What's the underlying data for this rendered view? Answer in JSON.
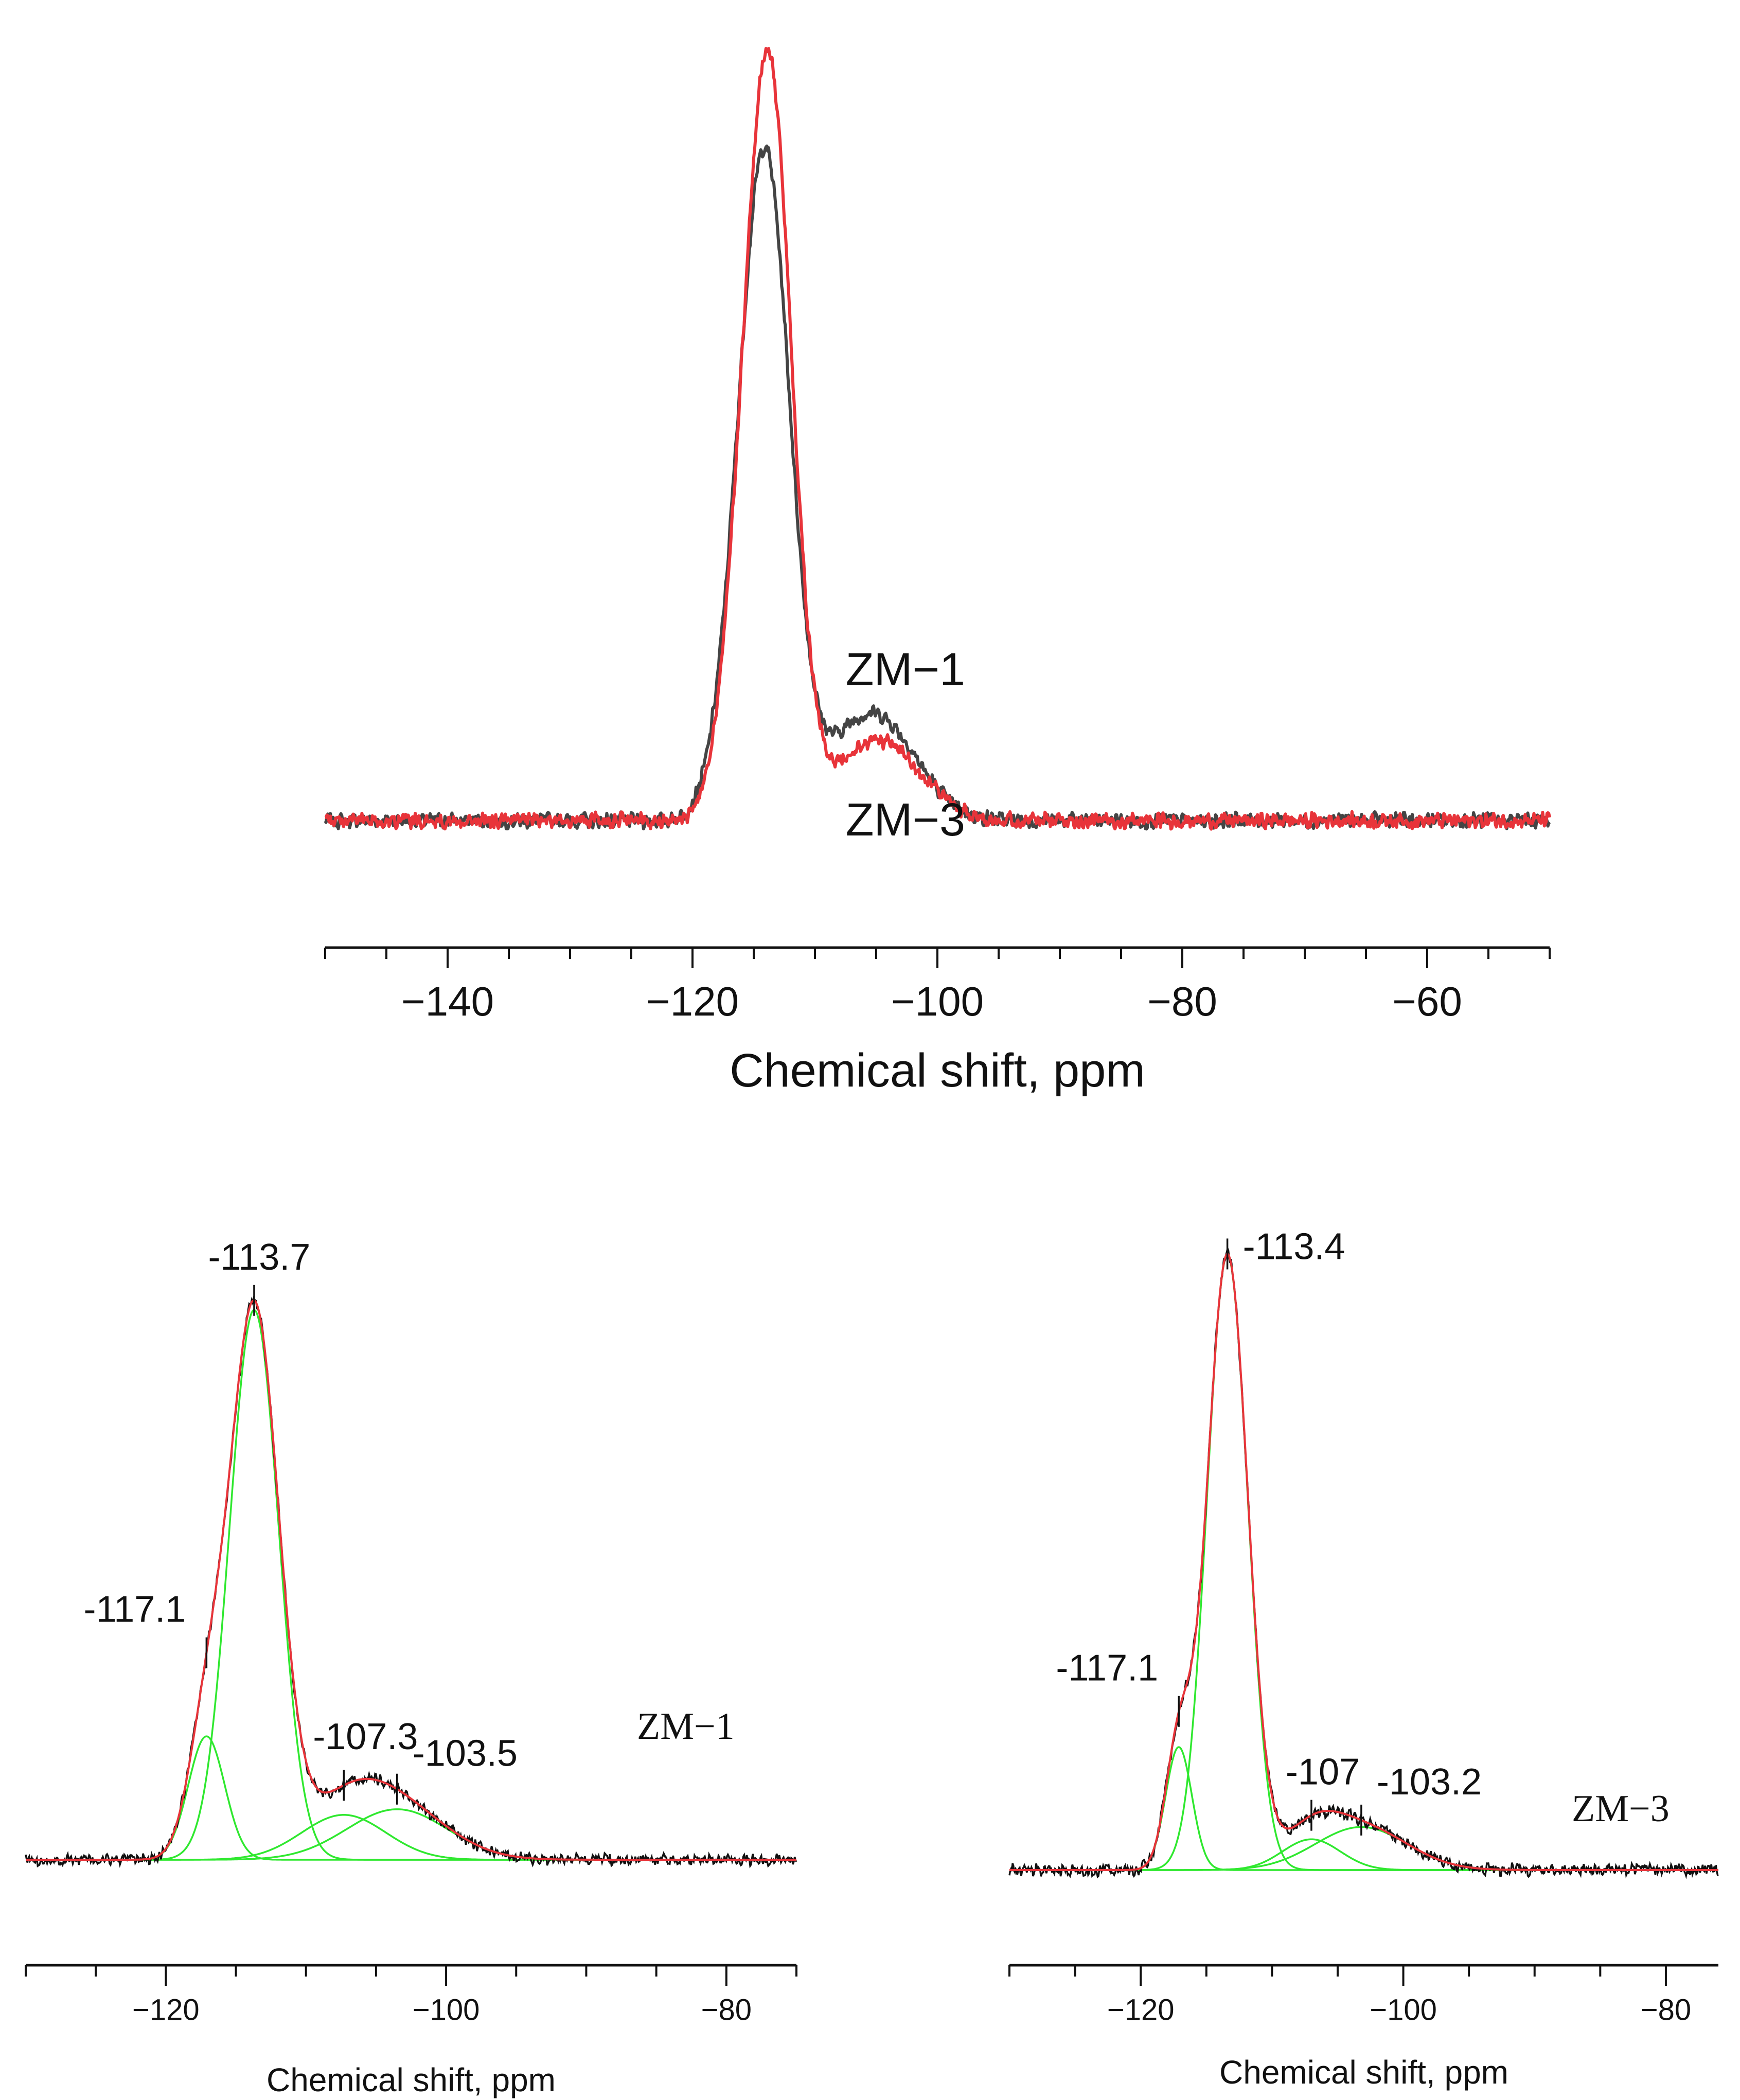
{
  "chart_data": [
    {
      "type": "line",
      "panel": "top",
      "xlabel": "Chemical shift, ppm",
      "xlim": [
        -150,
        -50
      ],
      "ylim": [
        -0.15,
        1.05
      ],
      "xticks": [
        -140,
        -120,
        -100,
        -80,
        -60
      ],
      "xtick_labels": [
        "−140",
        "−120",
        "−100",
        "−80",
        "−60"
      ],
      "grid": false,
      "series": [
        {
          "name": "ZM−1",
          "color": "#444444",
          "peaks": [
            {
              "center": -114.0,
              "height": 0.85,
              "width": 2.0
            },
            {
              "center": -116.5,
              "height": 0.1,
              "width": 1.8
            },
            {
              "center": -106.5,
              "height": 0.1,
              "width": 3.2
            },
            {
              "center": -103.5,
              "height": 0.06,
              "width": 3.0
            }
          ]
        },
        {
          "name": "ZM−3",
          "color": "#e8343a",
          "peaks": [
            {
              "center": -113.8,
              "height": 1.0,
              "width": 1.9
            },
            {
              "center": -116.6,
              "height": 0.1,
              "width": 1.6
            },
            {
              "center": -106.0,
              "height": 0.07,
              "width": 3.0
            },
            {
              "center": -103.0,
              "height": 0.05,
              "width": 3.0
            }
          ]
        }
      ],
      "annotations": [
        {
          "text": "ZM−1",
          "x": -107.5,
          "y": 0.18
        },
        {
          "text": "ZM−3",
          "x": -107.5,
          "y": -0.02
        }
      ]
    },
    {
      "type": "line",
      "panel": "bottom-left",
      "sample": "ZM−1",
      "xlabel": "Chemical shift, ppm",
      "xlim": [
        -130,
        -75
      ],
      "ylim": [
        -0.05,
        1.05
      ],
      "xticks": [
        -120,
        -100,
        -80
      ],
      "xtick_labels": [
        "−120",
        "−100",
        "−80"
      ],
      "grid": false,
      "components": [
        {
          "center": -117.1,
          "height": 0.22,
          "width": 1.3
        },
        {
          "center": -113.7,
          "height": 0.98,
          "width": 1.75
        },
        {
          "center": -107.3,
          "height": 0.08,
          "width": 3.0
        },
        {
          "center": -103.5,
          "height": 0.09,
          "width": 3.6
        }
      ],
      "peak_labels": [
        "-117.1",
        "-113.7",
        "-107.3",
        "-103.5"
      ],
      "colors": {
        "experimental": "#111111",
        "fit": "#e8343a",
        "components": "#2fe82f"
      }
    },
    {
      "type": "line",
      "panel": "bottom-right",
      "sample": "ZM−3",
      "xlabel": "Chemical shift, ppm",
      "xlim": [
        -130,
        -76
      ],
      "ylim": [
        -0.05,
        1.05
      ],
      "xticks": [
        -120,
        -100,
        -80
      ],
      "xtick_labels": [
        "−120",
        "−100",
        "−80"
      ],
      "grid": false,
      "components": [
        {
          "center": -117.1,
          "height": 0.2,
          "width": 1.0
        },
        {
          "center": -113.4,
          "height": 1.0,
          "width": 1.55
        },
        {
          "center": -107.0,
          "height": 0.05,
          "width": 2.2
        },
        {
          "center": -103.2,
          "height": 0.07,
          "width": 3.5
        }
      ],
      "peak_labels": [
        "-117.1",
        "-113.4",
        "-107",
        "-103.2"
      ],
      "colors": {
        "experimental": "#111111",
        "fit": "#e8343a",
        "components": "#2fe82f"
      }
    }
  ]
}
